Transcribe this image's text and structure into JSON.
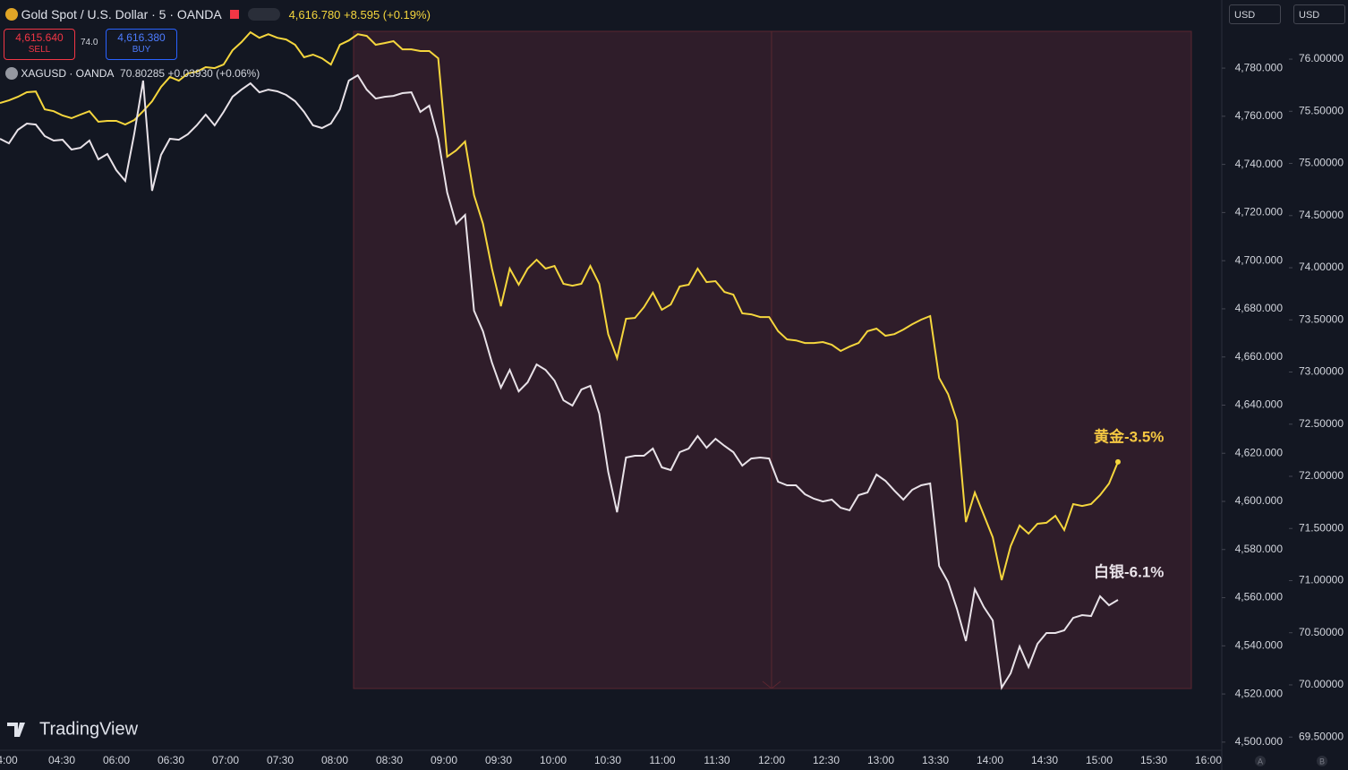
{
  "ui": {
    "symbol_title": "Gold Spot / U.S. Dollar · 5 · OANDA",
    "last_price": "4,616.780",
    "change": "+8.595 (+0.19%)",
    "sell_price": "4,615.640",
    "sell_label": "SELL",
    "spread": "74.0",
    "buy_price": "4,616.380",
    "buy_label": "BUY",
    "compare_symbol": "XAGUSD · OANDA",
    "compare_price": "70.80285",
    "compare_change": "+0.03930 (+0.06%)",
    "currency_left": "USD",
    "currency_right": "USD",
    "brand": "TradingView",
    "scale_a": "A",
    "scale_b": "B"
  },
  "chart_data": {
    "type": "line",
    "time_labels": [
      "4:00",
      "04:30",
      "06:00",
      "06:30",
      "07:00",
      "07:30",
      "08:00",
      "08:30",
      "09:00",
      "09:30",
      "10:00",
      "10:30",
      "11:00",
      "11:30",
      "12:00",
      "12:30",
      "13:00",
      "13:30",
      "14:00",
      "14:30",
      "15:00",
      "15:30",
      "16:00"
    ],
    "ylim": [
      4496.6,
      4808.3
    ],
    "yticks": [
      {
        "value": 4500,
        "label": "4,500.000"
      },
      {
        "value": 4520,
        "label": "4,520.000"
      },
      {
        "value": 4540,
        "label": "4,540.000"
      },
      {
        "value": 4560,
        "label": "4,560.000"
      },
      {
        "value": 4580,
        "label": "4,580.000"
      },
      {
        "value": 4600,
        "label": "4,600.000"
      },
      {
        "value": 4620,
        "label": "4,620.000"
      },
      {
        "value": 4640,
        "label": "4,640.000"
      },
      {
        "value": 4660,
        "label": "4,660.000"
      },
      {
        "value": 4680,
        "label": "4,680.000"
      },
      {
        "value": 4700,
        "label": "4,700.000"
      },
      {
        "value": 4720,
        "label": "4,720.000"
      },
      {
        "value": 4740,
        "label": "4,740.000"
      },
      {
        "value": 4760,
        "label": "4,760.000"
      },
      {
        "value": 4780,
        "label": "4,780.000"
      }
    ],
    "y2lim": [
      69.373,
      76.567
    ],
    "y2ticks": [
      {
        "value": 69.5,
        "label": "69.50000"
      },
      {
        "value": 70,
        "label": "70.00000"
      },
      {
        "value": 70.5,
        "label": "70.50000"
      },
      {
        "value": 71,
        "label": "71.00000"
      },
      {
        "value": 71.5,
        "label": "71.50000"
      },
      {
        "value": 72,
        "label": "72.00000"
      },
      {
        "value": 72.5,
        "label": "72.50000"
      },
      {
        "value": 73,
        "label": "73.00000"
      },
      {
        "value": 73.5,
        "label": "73.50000"
      },
      {
        "value": 74,
        "label": "74.00000"
      },
      {
        "value": 74.5,
        "label": "74.50000"
      },
      {
        "value": 75,
        "label": "75.00000"
      },
      {
        "value": 75.5,
        "label": "75.50000"
      },
      {
        "value": 76,
        "label": "76.00000"
      }
    ],
    "series": [
      {
        "name": "黄金-3.5%",
        "color": "#f5d63d",
        "values": [
          4765.5,
          4766.6,
          4768.1,
          4770.0,
          4770.3,
          4762.9,
          4762.1,
          4760.3,
          4759.2,
          4760.7,
          4762.1,
          4757.7,
          4758.1,
          4758.1,
          4756.6,
          4758.4,
          4762.1,
          4766.2,
          4772.2,
          4776.3,
          4774.8,
          4777.8,
          4778.5,
          4780.4,
          4780.0,
          4781.5,
          4787.4,
          4790.8,
          4794.9,
          4792.6,
          4794.1,
          4792.6,
          4791.9,
          4789.7,
          4784.5,
          4785.6,
          4784.1,
          4781.5,
          4789.7,
          4791.5,
          4794.1,
          4793.4,
          4789.7,
          4790.4,
          4791.2,
          4787.8,
          4787.8,
          4787.1,
          4787.1,
          4784.1,
          4743.2,
          4745.8,
          4749.5,
          4727.2,
          4715.3,
          4696.7,
          4681.1,
          4696.7,
          4690.0,
          4696.7,
          4700.4,
          4696.7,
          4697.8,
          4690.4,
          4689.6,
          4690.4,
          4697.8,
          4690.4,
          4669.5,
          4659.5,
          4675.9,
          4676.2,
          4680.7,
          4686.7,
          4679.6,
          4681.8,
          4689.3,
          4690.0,
          4696.7,
          4691.1,
          4691.5,
          4687.0,
          4685.9,
          4678.1,
          4677.7,
          4676.6,
          4676.6,
          4670.7,
          4667.3,
          4666.9,
          4665.8,
          4665.8,
          4666.2,
          4665.1,
          4662.5,
          4664.3,
          4665.8,
          4670.7,
          4671.8,
          4668.8,
          4669.5,
          4671.4,
          4673.6,
          4675.5,
          4677.0,
          4651.3,
          4644.6,
          4633.5,
          4591.4,
          4603.7,
          4594.4,
          4585.1,
          4567.3,
          4581.4,
          4590.0,
          4586.6,
          4590.7,
          4591.1,
          4594.0,
          4588.1,
          4598.9,
          4598.1,
          4598.9,
          4602.6,
          4607.4,
          4616.4
        ]
      },
      {
        "name": "白银-6.1%",
        "color": "#e8e2e8",
        "axis": "y2",
        "values": [
          75.236,
          75.193,
          75.322,
          75.382,
          75.373,
          75.262,
          75.219,
          75.227,
          75.133,
          75.15,
          75.219,
          75.039,
          75.09,
          74.936,
          74.833,
          75.279,
          75.794,
          74.738,
          75.082,
          75.236,
          75.227,
          75.279,
          75.365,
          75.468,
          75.365,
          75.494,
          75.639,
          75.708,
          75.768,
          75.682,
          75.708,
          75.691,
          75.657,
          75.597,
          75.494,
          75.365,
          75.339,
          75.382,
          75.519,
          75.794,
          75.845,
          75.708,
          75.622,
          75.639,
          75.648,
          75.674,
          75.682,
          75.494,
          75.554,
          75.236,
          74.721,
          74.421,
          74.506,
          73.588,
          73.39,
          73.09,
          72.85,
          73.021,
          72.815,
          72.901,
          73.073,
          73.021,
          72.918,
          72.729,
          72.678,
          72.832,
          72.867,
          72.601,
          72.043,
          71.656,
          72.18,
          72.197,
          72.197,
          72.266,
          72.086,
          72.06,
          72.232,
          72.266,
          72.386,
          72.274,
          72.36,
          72.292,
          72.232,
          72.103,
          72.171,
          72.18,
          72.171,
          71.948,
          71.914,
          71.914,
          71.828,
          71.785,
          71.759,
          71.777,
          71.699,
          71.674,
          71.82,
          71.845,
          72.017,
          71.957,
          71.863,
          71.777,
          71.871,
          71.914,
          71.931,
          71.141,
          70.987,
          70.729,
          70.42,
          70.918,
          70.747,
          70.618,
          69.974,
          70.111,
          70.369,
          70.171,
          70.395,
          70.498,
          70.498,
          70.523,
          70.643,
          70.669,
          70.661,
          70.85,
          70.764,
          70.815
        ]
      }
    ]
  }
}
